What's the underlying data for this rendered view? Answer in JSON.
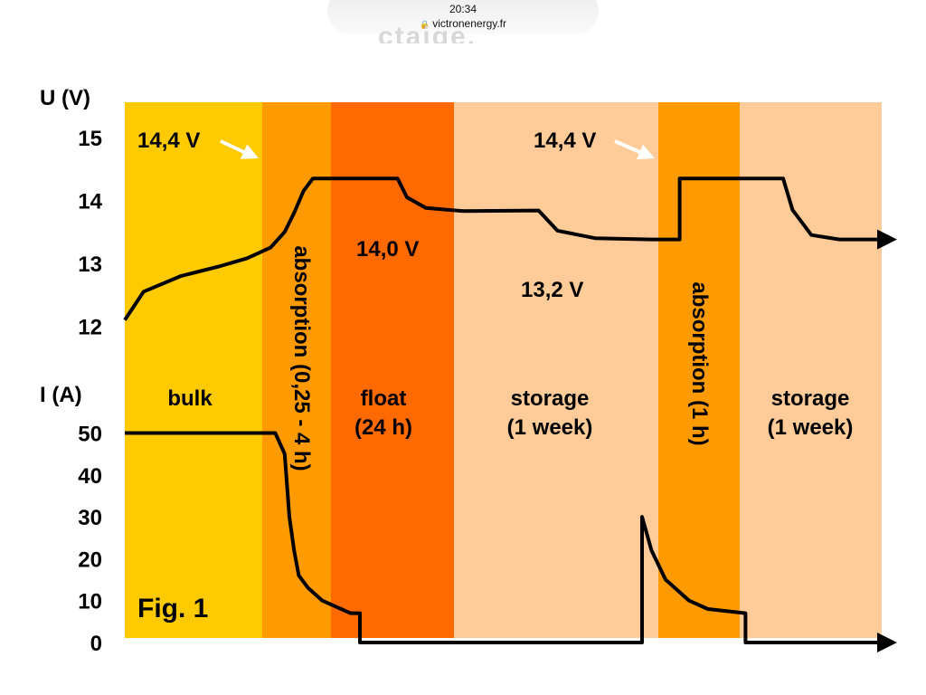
{
  "status": {
    "time": "20:34",
    "url": "victronenergy.fr"
  },
  "chart_data": {
    "type": "line",
    "figure_label": "Fig. 1",
    "voltage_axis": {
      "label": "U (V)",
      "ticks": [
        12,
        13,
        14,
        15
      ],
      "ylim": [
        12,
        15
      ]
    },
    "current_axis": {
      "label": "I (A)",
      "ticks": [
        0,
        10,
        20,
        30,
        40,
        50
      ],
      "ylim": [
        0,
        50
      ]
    },
    "phases": [
      {
        "id": "bulk",
        "label_lines": [
          "bulk"
        ],
        "color": "#FFCA00"
      },
      {
        "id": "absorption",
        "label_lines": [
          "absorption (0,25 - 4 h)"
        ],
        "vertical": true,
        "color": "#FF9A00"
      },
      {
        "id": "float",
        "label_lines": [
          "float",
          "(24 h)"
        ],
        "color": "#FF6A00"
      },
      {
        "id": "storage",
        "label_lines": [
          "storage",
          "(1 week)"
        ],
        "color": "#FFCC99"
      },
      {
        "id": "absorption-2",
        "label_lines": [
          "absorption (1 h)"
        ],
        "vertical": true,
        "color": "#FF9A00"
      },
      {
        "id": "storage-2",
        "label_lines": [
          "storage",
          "(1 week)"
        ],
        "color": "#FFCC99"
      }
    ],
    "annotations": [
      {
        "id": "v-abs-1",
        "text": "14,4 V",
        "arrow": true
      },
      {
        "id": "v-float",
        "text": "14,0 V"
      },
      {
        "id": "v-storage",
        "text": "13,2 V"
      },
      {
        "id": "v-abs-2",
        "text": "14,4 V",
        "arrow": true
      }
    ],
    "series": [
      {
        "name": "U",
        "axis": "voltage",
        "points": [
          [
            0.0,
            12.1
          ],
          [
            0.02,
            12.55
          ],
          [
            0.06,
            12.8
          ],
          [
            0.1,
            12.95
          ],
          [
            0.13,
            13.08
          ],
          [
            0.155,
            13.25
          ],
          [
            0.17,
            13.5
          ],
          [
            0.18,
            13.8
          ],
          [
            0.19,
            14.15
          ],
          [
            0.2,
            14.35
          ],
          [
            0.2,
            14.35
          ],
          [
            0.29,
            14.35
          ],
          [
            0.3,
            14.05
          ],
          [
            0.32,
            13.88
          ],
          [
            0.36,
            13.83
          ],
          [
            0.44,
            13.84
          ],
          [
            0.44,
            13.84
          ],
          [
            0.46,
            13.52
          ],
          [
            0.5,
            13.4
          ],
          [
            0.56,
            13.38
          ],
          [
            0.59,
            13.38
          ],
          [
            0.59,
            14.35
          ],
          [
            0.7,
            14.35
          ],
          [
            0.71,
            13.85
          ],
          [
            0.73,
            13.45
          ],
          [
            0.76,
            13.38
          ],
          [
            0.8,
            13.38
          ]
        ],
        "arrow_end": true
      },
      {
        "name": "I",
        "axis": "current",
        "points": [
          [
            0.0,
            50
          ],
          [
            0.16,
            50
          ],
          [
            0.17,
            45
          ],
          [
            0.175,
            30
          ],
          [
            0.18,
            22
          ],
          [
            0.185,
            16
          ],
          [
            0.195,
            13
          ],
          [
            0.21,
            10
          ],
          [
            0.24,
            7
          ],
          [
            0.25,
            7
          ],
          [
            0.25,
            0
          ],
          [
            0.55,
            0
          ],
          [
            0.55,
            30
          ],
          [
            0.56,
            22
          ],
          [
            0.575,
            15
          ],
          [
            0.6,
            10
          ],
          [
            0.62,
            8
          ],
          [
            0.66,
            7
          ],
          [
            0.66,
            0
          ],
          [
            0.8,
            0
          ]
        ],
        "arrow_end": true
      }
    ]
  }
}
